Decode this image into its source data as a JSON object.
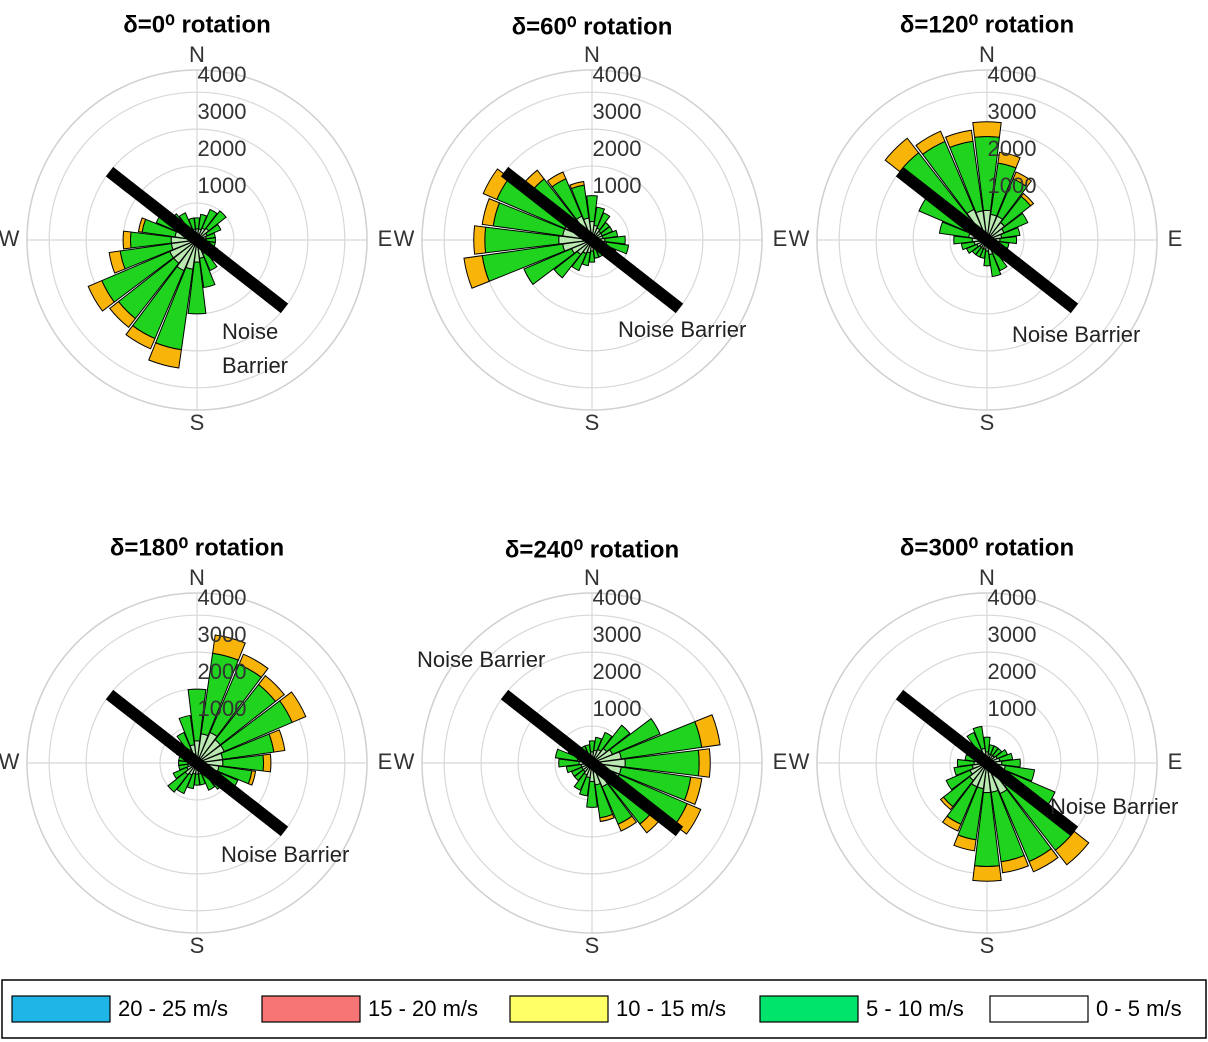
{
  "chart_data": [
    {
      "type": "windrose",
      "title": "δ=0⁰ rotation",
      "compass": [
        "N",
        "E",
        "S",
        "W"
      ],
      "annotation": [
        "Noise",
        "Barrier"
      ],
      "directions": [
        0,
        15,
        30,
        45,
        60,
        75,
        90,
        105,
        120,
        135,
        150,
        165,
        180,
        195,
        210,
        225,
        240,
        255,
        270,
        285,
        300,
        315,
        330,
        345
      ],
      "rlim": [
        0,
        4600
      ],
      "rticks": [
        1000,
        2000,
        3000,
        4000
      ],
      "series": [
        {
          "name": "0 - 5 m/s",
          "color": "#b9e8b1",
          "values": [
            300,
            300,
            350,
            400,
            300,
            250,
            250,
            250,
            300,
            350,
            400,
            500,
            600,
            800,
            900,
            800,
            800,
            700,
            700,
            600,
            500,
            400,
            350,
            300
          ]
        },
        {
          "name": "5 - 10 m/s",
          "color": "#1fd31f",
          "values": [
            300,
            400,
            550,
            600,
            400,
            250,
            250,
            250,
            300,
            350,
            500,
            800,
            1400,
            2200,
            2000,
            1900,
            2000,
            1400,
            1100,
            900,
            700,
            500,
            450,
            300
          ]
        },
        {
          "name": "10 - 15 m/s",
          "color": "#f9b40a",
          "values": [
            0,
            0,
            0,
            0,
            0,
            0,
            0,
            0,
            0,
            0,
            0,
            0,
            0,
            500,
            300,
            300,
            400,
            300,
            200,
            100,
            0,
            0,
            0,
            0
          ]
        }
      ]
    },
    {
      "type": "windrose",
      "title": "δ=60⁰ rotation",
      "compass": [
        "N",
        "E",
        "S",
        "W"
      ],
      "annotation": [
        "Noise Barrier"
      ],
      "directions": [
        0,
        15,
        30,
        45,
        60,
        75,
        90,
        105,
        120,
        135,
        150,
        165,
        180,
        195,
        210,
        225,
        240,
        255,
        270,
        285,
        300,
        315,
        330,
        345
      ],
      "rlim": [
        0,
        4600
      ],
      "rticks": [
        1000,
        2000,
        3000,
        4000
      ],
      "series": [
        {
          "name": "0 - 5 m/s",
          "color": "#b9e8b1",
          "values": [
            500,
            400,
            350,
            300,
            300,
            300,
            350,
            400,
            300,
            250,
            250,
            250,
            300,
            350,
            400,
            500,
            600,
            800,
            900,
            800,
            800,
            700,
            700,
            600
          ]
        },
        {
          "name": "5 - 10 m/s",
          "color": "#1fd31f",
          "values": [
            700,
            500,
            450,
            300,
            300,
            400,
            550,
            600,
            400,
            250,
            250,
            250,
            300,
            350,
            500,
            800,
            1400,
            2200,
            2000,
            1900,
            2000,
            1400,
            1100,
            900
          ]
        },
        {
          "name": "10 - 15 m/s",
          "color": "#f9b40a",
          "values": [
            0,
            0,
            0,
            0,
            0,
            0,
            0,
            0,
            0,
            0,
            0,
            0,
            0,
            0,
            0,
            0,
            0,
            500,
            300,
            300,
            400,
            300,
            200,
            100
          ]
        }
      ]
    },
    {
      "type": "windrose",
      "title": "δ=120⁰ rotation",
      "compass": [
        "N",
        "E",
        "S",
        "W"
      ],
      "annotation": [
        "Noise Barrier"
      ],
      "directions": [
        0,
        15,
        30,
        45,
        60,
        75,
        90,
        105,
        120,
        135,
        150,
        165,
        180,
        195,
        210,
        225,
        240,
        255,
        270,
        285,
        300,
        315,
        330,
        345
      ],
      "rlim": [
        0,
        4600
      ],
      "rticks": [
        1000,
        2000,
        3000,
        4000
      ],
      "series": [
        {
          "name": "0 - 5 m/s",
          "color": "#b9e8b1",
          "values": [
            800,
            700,
            700,
            600,
            500,
            400,
            350,
            300,
            300,
            300,
            350,
            400,
            300,
            250,
            250,
            250,
            300,
            350,
            400,
            500,
            600,
            800,
            900,
            800
          ]
        },
        {
          "name": "5 - 10 m/s",
          "color": "#1fd31f",
          "values": [
            2000,
            1400,
            1100,
            900,
            700,
            500,
            450,
            300,
            300,
            400,
            550,
            600,
            400,
            250,
            250,
            250,
            300,
            350,
            500,
            800,
            1400,
            2200,
            2000,
            1900
          ]
        },
        {
          "name": "10 - 15 m/s",
          "color": "#f9b40a",
          "values": [
            400,
            300,
            200,
            100,
            0,
            0,
            0,
            0,
            0,
            0,
            0,
            0,
            0,
            0,
            0,
            0,
            0,
            0,
            0,
            0,
            0,
            500,
            300,
            300
          ]
        }
      ]
    },
    {
      "type": "windrose",
      "title": "δ=180⁰ rotation",
      "compass": [
        "N",
        "E",
        "S",
        "W"
      ],
      "annotation": [
        "Noise Barrier"
      ],
      "directions": [
        0,
        15,
        30,
        45,
        60,
        75,
        90,
        105,
        120,
        135,
        150,
        165,
        180,
        195,
        210,
        225,
        240,
        255,
        270,
        285,
        300,
        315,
        330,
        345
      ],
      "rlim": [
        0,
        4600
      ],
      "rticks": [
        1000,
        2000,
        3000,
        4000
      ],
      "series": [
        {
          "name": "0 - 5 m/s",
          "color": "#b9e8b1",
          "values": [
            600,
            800,
            900,
            800,
            800,
            700,
            700,
            600,
            500,
            400,
            350,
            300,
            300,
            300,
            350,
            400,
            300,
            250,
            250,
            250,
            300,
            350,
            400,
            500
          ]
        },
        {
          "name": "5 - 10 m/s",
          "color": "#1fd31f",
          "values": [
            1400,
            2200,
            2000,
            1900,
            2000,
            1400,
            1100,
            900,
            700,
            500,
            450,
            300,
            300,
            400,
            550,
            600,
            400,
            250,
            250,
            250,
            300,
            350,
            500,
            800
          ]
        },
        {
          "name": "10 - 15 m/s",
          "color": "#f9b40a",
          "values": [
            0,
            500,
            300,
            300,
            400,
            300,
            200,
            100,
            0,
            0,
            0,
            0,
            0,
            0,
            0,
            0,
            0,
            0,
            0,
            0,
            0,
            0,
            0,
            0
          ]
        }
      ]
    },
    {
      "type": "windrose",
      "title": "δ=240⁰ rotation",
      "compass": [
        "N",
        "E",
        "S",
        "W"
      ],
      "annotation": [
        "Noise Barrier"
      ],
      "directions": [
        0,
        15,
        30,
        45,
        60,
        75,
        90,
        105,
        120,
        135,
        150,
        165,
        180,
        195,
        210,
        225,
        240,
        255,
        270,
        285,
        300,
        315,
        330,
        345
      ],
      "rlim": [
        0,
        4600
      ],
      "rticks": [
        1000,
        2000,
        3000,
        4000
      ],
      "series": [
        {
          "name": "0 - 5 m/s",
          "color": "#b9e8b1",
          "values": [
            300,
            350,
            400,
            500,
            600,
            800,
            900,
            800,
            800,
            700,
            700,
            600,
            500,
            400,
            350,
            300,
            300,
            300,
            350,
            400,
            300,
            250,
            250,
            250
          ]
        },
        {
          "name": "5 - 10 m/s",
          "color": "#1fd31f",
          "values": [
            300,
            350,
            500,
            800,
            1400,
            2200,
            2000,
            1900,
            2000,
            1400,
            1100,
            900,
            700,
            500,
            450,
            300,
            300,
            400,
            550,
            600,
            400,
            250,
            250,
            250
          ]
        },
        {
          "name": "10 - 15 m/s",
          "color": "#f9b40a",
          "values": [
            0,
            0,
            0,
            0,
            0,
            500,
            300,
            300,
            400,
            300,
            200,
            100,
            0,
            0,
            0,
            0,
            0,
            0,
            0,
            0,
            0,
            0,
            0,
            0
          ]
        }
      ]
    },
    {
      "type": "windrose",
      "title": "δ=300⁰ rotation",
      "compass": [
        "N",
        "E",
        "S",
        "W"
      ],
      "annotation": [
        "Noise Barrier"
      ],
      "directions": [
        0,
        15,
        30,
        45,
        60,
        75,
        90,
        105,
        120,
        135,
        150,
        165,
        180,
        195,
        210,
        225,
        240,
        255,
        270,
        285,
        300,
        315,
        330,
        345
      ],
      "rlim": [
        0,
        4600
      ],
      "rticks": [
        1000,
        2000,
        3000,
        4000
      ],
      "series": [
        {
          "name": "0 - 5 m/s",
          "color": "#b9e8b1",
          "values": [
            300,
            250,
            250,
            250,
            300,
            350,
            400,
            500,
            600,
            800,
            900,
            800,
            800,
            700,
            700,
            600,
            500,
            400,
            350,
            300,
            300,
            300,
            350,
            400
          ]
        },
        {
          "name": "5 - 10 m/s",
          "color": "#1fd31f",
          "values": [
            400,
            250,
            250,
            250,
            300,
            350,
            500,
            800,
            1400,
            2200,
            2000,
            1900,
            2000,
            1400,
            1100,
            900,
            700,
            500,
            450,
            300,
            300,
            400,
            550,
            600
          ]
        },
        {
          "name": "10 - 15 m/s",
          "color": "#f9b40a",
          "values": [
            0,
            0,
            0,
            0,
            0,
            0,
            0,
            0,
            0,
            500,
            300,
            300,
            400,
            300,
            200,
            100,
            0,
            0,
            0,
            0,
            0,
            0,
            0,
            0
          ]
        }
      ]
    }
  ],
  "legend": [
    {
      "name": "20 - 25 m/s",
      "color": "#1fb5e6"
    },
    {
      "name": "15 - 20 m/s",
      "color": "#f87575"
    },
    {
      "name": "10 - 15 m/s",
      "color": "#ffff66"
    },
    {
      "name": "5 - 10 m/s",
      "color": "#00e46c"
    },
    {
      "name": "0 - 5 m/s",
      "color": "#ffffff"
    }
  ]
}
